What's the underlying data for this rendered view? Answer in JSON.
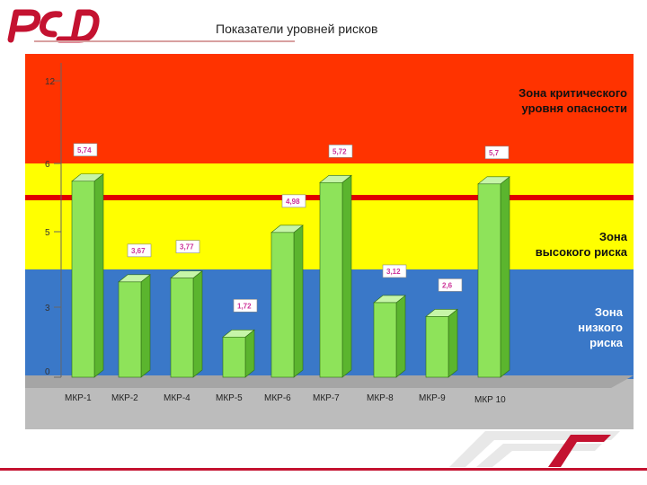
{
  "page": {
    "title": "Показатели уровней рисков"
  },
  "colors": {
    "brand_red": "#c41230",
    "critical_zone": "#ff3300",
    "high_zone": "#ffff00",
    "low_zone": "#3a78c8",
    "floor": "#c0c0c0",
    "bar_front": "#8ee35a",
    "bar_side": "#5bb52e",
    "bar_top": "#c6f5a8",
    "threshold_line": "#e00000",
    "value_text": "#cc3399"
  },
  "icons": {
    "logo": "rzd-logo-icon",
    "footer": "rail-stripes-icon"
  },
  "chart_data": {
    "type": "bar",
    "title": "Показатели уровней рисков",
    "categories": [
      "МКР-1",
      "МКР-2",
      "МКР-4",
      "МКР-5",
      "МКР-6",
      "МКР-7",
      "МКР-8",
      "МКР-9",
      "МКР 10"
    ],
    "values": [
      5.74,
      3.67,
      3.77,
      1.72,
      4.98,
      5.72,
      3.12,
      2.6,
      5.7
    ],
    "value_labels": [
      "5,74",
      "3,67",
      "3,77",
      "1,72",
      "4,98",
      "5,72",
      "3,12",
      "2,6",
      "5,7"
    ],
    "y_ticks": [
      {
        "value": 0,
        "label": "0"
      },
      {
        "value": 3,
        "label": "3"
      },
      {
        "value": 5,
        "label": "5"
      },
      {
        "value": 6,
        "label": "6"
      },
      {
        "value": 12,
        "label": "12"
      }
    ],
    "ylim": [
      0,
      12
    ],
    "y_scale": "piecewise",
    "threshold": 5.5,
    "zones": [
      {
        "name": "low",
        "from": 0,
        "to": 4,
        "label_lines": [
          "Зона",
          "низкого",
          "риска"
        ]
      },
      {
        "name": "high",
        "from": 4,
        "to": 6,
        "label_lines": [
          "Зона",
          "высокого риска"
        ]
      },
      {
        "name": "critical",
        "from": 6,
        "to": 12,
        "label_lines": [
          "Зона критического",
          "уровня опасности"
        ]
      }
    ],
    "grid": false,
    "legend": "none"
  }
}
